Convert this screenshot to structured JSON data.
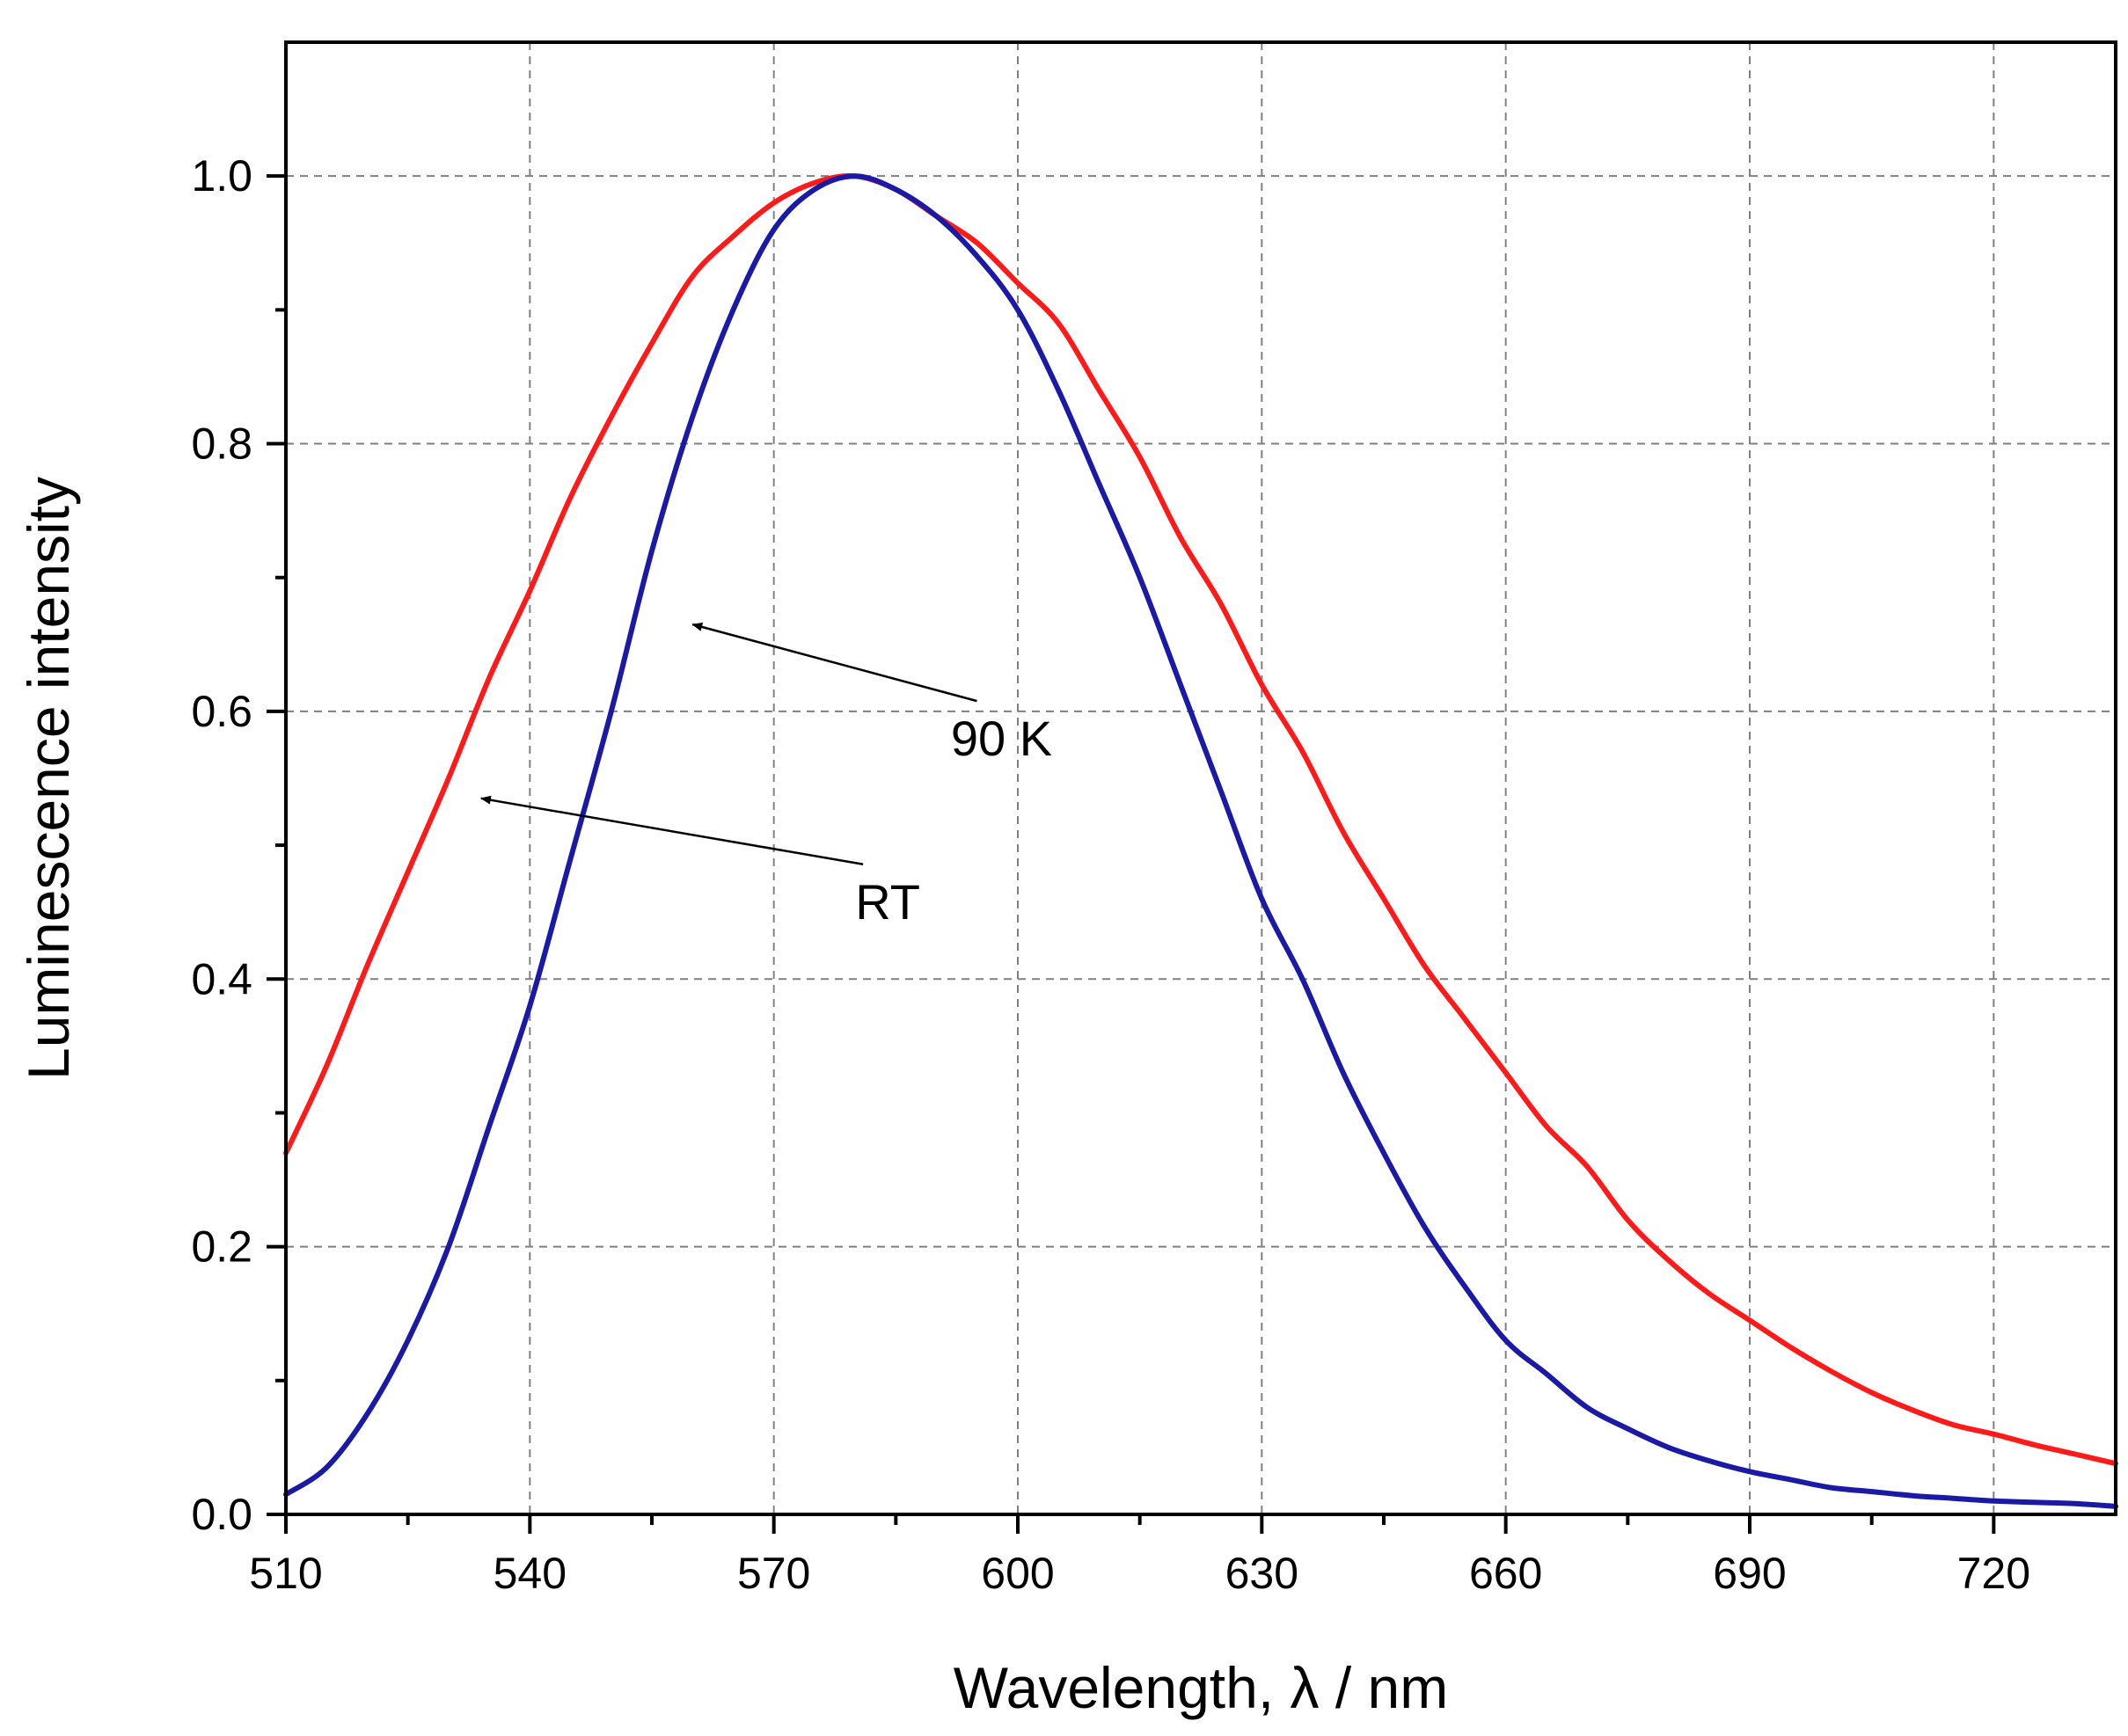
{
  "chart_data": {
    "type": "line",
    "title": "",
    "xlabel": "Wavelength, λ / nm",
    "ylabel": "Luminescence intensity",
    "xlim": [
      510,
      735
    ],
    "ylim": [
      0,
      1.1
    ],
    "x_ticks": [
      510,
      540,
      570,
      600,
      630,
      660,
      690,
      720
    ],
    "x_tick_labels": [
      "510",
      "540",
      "570",
      "600",
      "630",
      "660",
      "690",
      "720"
    ],
    "y_ticks": [
      0.0,
      0.2,
      0.4,
      0.6,
      0.8,
      1.0
    ],
    "y_tick_labels": [
      "0.0",
      "0.2",
      "0.4",
      "0.6",
      "0.8",
      "1.0"
    ],
    "x_minor_ticks": [
      525,
      555,
      585,
      615,
      645,
      675,
      705
    ],
    "y_minor_ticks": [
      0.1,
      0.3,
      0.5,
      0.7,
      0.9
    ],
    "grid": true,
    "series": [
      {
        "name": "RT",
        "color": "#ff1a1a",
        "x": [
          510,
          515,
          520,
          525,
          530,
          535,
          540,
          545,
          550,
          555,
          560,
          565,
          570,
          575,
          580,
          585,
          590,
          595,
          600,
          605,
          610,
          615,
          620,
          625,
          630,
          635,
          640,
          645,
          650,
          655,
          660,
          665,
          670,
          675,
          680,
          685,
          690,
          695,
          700,
          705,
          710,
          715,
          720,
          725,
          730,
          735
        ],
        "values": [
          0.27,
          0.335,
          0.41,
          0.48,
          0.55,
          0.625,
          0.69,
          0.76,
          0.82,
          0.875,
          0.925,
          0.955,
          0.98,
          0.995,
          1.0,
          0.99,
          0.97,
          0.95,
          0.92,
          0.89,
          0.84,
          0.79,
          0.73,
          0.68,
          0.62,
          0.57,
          0.51,
          0.46,
          0.41,
          0.37,
          0.33,
          0.29,
          0.26,
          0.22,
          0.19,
          0.165,
          0.145,
          0.125,
          0.107,
          0.091,
          0.078,
          0.067,
          0.06,
          0.052,
          0.045,
          0.038
        ]
      },
      {
        "name": "90 K",
        "color": "#1a1aa6",
        "x": [
          510,
          515,
          520,
          525,
          530,
          535,
          540,
          545,
          550,
          555,
          560,
          565,
          570,
          575,
          580,
          585,
          590,
          595,
          600,
          605,
          610,
          615,
          620,
          625,
          630,
          635,
          640,
          645,
          650,
          655,
          660,
          665,
          670,
          675,
          680,
          685,
          690,
          695,
          700,
          705,
          710,
          715,
          720,
          725,
          730,
          735
        ],
        "values": [
          0.015,
          0.035,
          0.075,
          0.13,
          0.2,
          0.29,
          0.38,
          0.49,
          0.6,
          0.72,
          0.82,
          0.9,
          0.96,
          0.99,
          1.0,
          0.99,
          0.97,
          0.94,
          0.9,
          0.84,
          0.77,
          0.7,
          0.62,
          0.54,
          0.46,
          0.4,
          0.33,
          0.27,
          0.215,
          0.17,
          0.13,
          0.105,
          0.08,
          0.064,
          0.05,
          0.04,
          0.032,
          0.026,
          0.02,
          0.017,
          0.014,
          0.012,
          0.01,
          0.009,
          0.008,
          0.006
        ]
      }
    ],
    "annotations": [
      {
        "text": "90 K",
        "label_x": 598,
        "label_y": 0.567,
        "arrow_to_x": 560,
        "arrow_to_y": 0.665
      },
      {
        "text": "RT",
        "label_x": 584,
        "label_y": 0.445,
        "arrow_to_x": 534,
        "arrow_to_y": 0.535
      }
    ]
  }
}
